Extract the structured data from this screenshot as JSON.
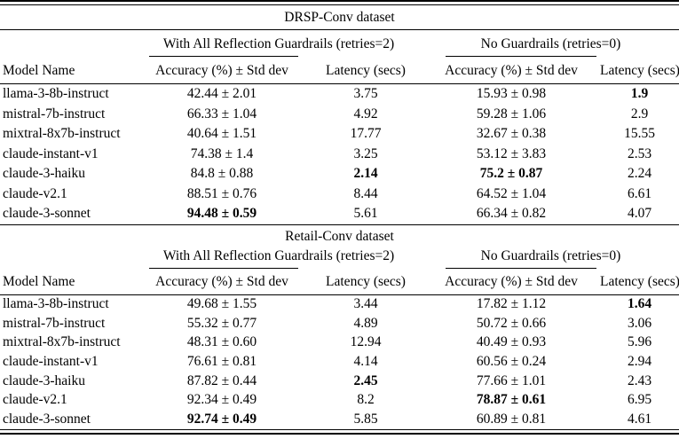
{
  "figure": {
    "background": "#ffffff",
    "text_color": "#000000",
    "rule_color": "#000000"
  },
  "tables": [
    {
      "title": "DRSP-Conv dataset",
      "group_guardrails": "With All Reflection Guardrails (retries=2)",
      "group_no_guardrails": "No Guardrails (retries=0)",
      "col_model": "Model Name",
      "col_accuracy": "Accuracy (%) ± Std dev",
      "col_latency": "Latency (secs)",
      "rows": [
        {
          "model": "llama-3-8b-instruct",
          "cells": [
            {
              "text": "42.44 ± 2.01",
              "bold": false
            },
            {
              "text": "3.75",
              "bold": false
            },
            {
              "text": "15.93 ± 0.98",
              "bold": false
            },
            {
              "text": "1.9",
              "bold": true
            }
          ]
        },
        {
          "model": "mistral-7b-instruct",
          "cells": [
            {
              "text": "66.33 ± 1.04",
              "bold": false
            },
            {
              "text": "4.92",
              "bold": false
            },
            {
              "text": "59.28 ± 1.06",
              "bold": false
            },
            {
              "text": "2.9",
              "bold": false
            }
          ]
        },
        {
          "model": "mixtral-8x7b-instruct",
          "cells": [
            {
              "text": "40.64 ± 1.51",
              "bold": false
            },
            {
              "text": "17.77",
              "bold": false
            },
            {
              "text": "32.67 ± 0.38",
              "bold": false
            },
            {
              "text": "15.55",
              "bold": false
            }
          ]
        },
        {
          "model": "claude-instant-v1",
          "cells": [
            {
              "text": "74.38 ± 1.4",
              "bold": false
            },
            {
              "text": "3.25",
              "bold": false
            },
            {
              "text": "53.12 ± 3.83",
              "bold": false
            },
            {
              "text": "2.53",
              "bold": false
            }
          ]
        },
        {
          "model": "claude-3-haiku",
          "cells": [
            {
              "text": "84.8 ± 0.88",
              "bold": false
            },
            {
              "text": "2.14",
              "bold": true
            },
            {
              "text": "75.2 ± 0.87",
              "bold": true
            },
            {
              "text": "2.24",
              "bold": false
            }
          ]
        },
        {
          "model": "claude-v2.1",
          "cells": [
            {
              "text": "88.51 ± 0.76",
              "bold": false
            },
            {
              "text": "8.44",
              "bold": false
            },
            {
              "text": "64.52 ± 1.04",
              "bold": false
            },
            {
              "text": "6.61",
              "bold": false
            }
          ]
        },
        {
          "model": "claude-3-sonnet",
          "cells": [
            {
              "text": "94.48 ± 0.59",
              "bold": true
            },
            {
              "text": "5.61",
              "bold": false
            },
            {
              "text": "66.34 ± 0.82",
              "bold": false
            },
            {
              "text": "4.07",
              "bold": false
            }
          ]
        }
      ]
    },
    {
      "title": "Retail-Conv dataset",
      "group_guardrails": "With All Reflection Guardrails (retries=2)",
      "group_no_guardrails": "No Guardrails (retries=0)",
      "col_model": "Model Name",
      "col_accuracy": "Accuracy (%) ± Std dev",
      "col_latency": "Latency (secs)",
      "rows": [
        {
          "model": "llama-3-8b-instruct",
          "cells": [
            {
              "text": "49.68 ± 1.55",
              "bold": false
            },
            {
              "text": "3.44",
              "bold": false
            },
            {
              "text": "17.82 ± 1.12",
              "bold": false
            },
            {
              "text": "1.64",
              "bold": true
            }
          ]
        },
        {
          "model": "mistral-7b-instruct",
          "cells": [
            {
              "text": "55.32 ± 0.77",
              "bold": false
            },
            {
              "text": "4.89",
              "bold": false
            },
            {
              "text": "50.72 ± 0.66",
              "bold": false
            },
            {
              "text": "3.06",
              "bold": false
            }
          ]
        },
        {
          "model": "mixtral-8x7b-instruct",
          "cells": [
            {
              "text": "48.31 ± 0.60",
              "bold": false
            },
            {
              "text": "12.94",
              "bold": false
            },
            {
              "text": "40.49 ± 0.93",
              "bold": false
            },
            {
              "text": "5.96",
              "bold": false
            }
          ]
        },
        {
          "model": "claude-instant-v1",
          "cells": [
            {
              "text": "76.61 ± 0.81",
              "bold": false
            },
            {
              "text": "4.14",
              "bold": false
            },
            {
              "text": "60.56 ± 0.24",
              "bold": false
            },
            {
              "text": "2.94",
              "bold": false
            }
          ]
        },
        {
          "model": "claude-3-haiku",
          "cells": [
            {
              "text": "87.82 ± 0.44",
              "bold": false
            },
            {
              "text": "2.45",
              "bold": true
            },
            {
              "text": "77.66 ± 1.01",
              "bold": false
            },
            {
              "text": "2.43",
              "bold": false
            }
          ]
        },
        {
          "model": "claude-v2.1",
          "cells": [
            {
              "text": "92.34 ± 0.49",
              "bold": false
            },
            {
              "text": "8.2",
              "bold": false
            },
            {
              "text": "78.87 ± 0.61",
              "bold": true
            },
            {
              "text": "6.95",
              "bold": false
            }
          ]
        },
        {
          "model": "claude-3-sonnet",
          "cells": [
            {
              "text": "92.74 ± 0.49",
              "bold": true
            },
            {
              "text": "5.85",
              "bold": false
            },
            {
              "text": "60.89 ± 0.81",
              "bold": false
            },
            {
              "text": "4.61",
              "bold": false
            }
          ]
        }
      ]
    }
  ]
}
